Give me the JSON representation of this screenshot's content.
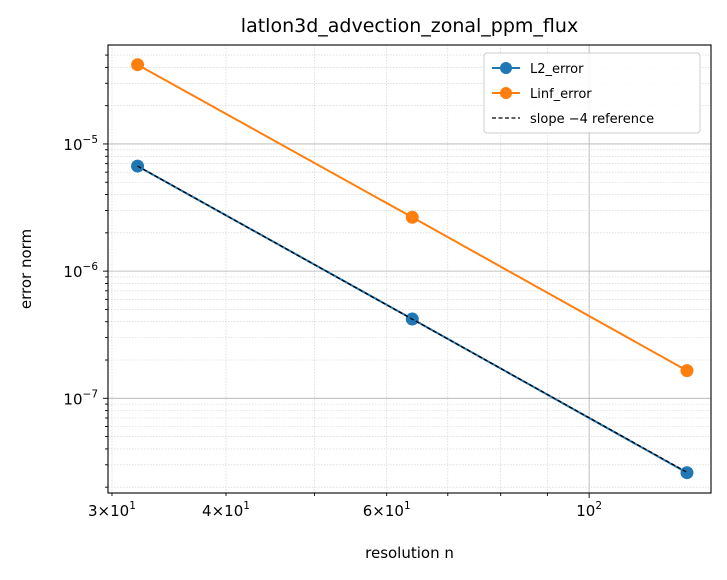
{
  "chart_data": {
    "type": "line",
    "title": "latlon3d_advection_zonal_ppm_flux",
    "xlabel": "resolution n",
    "ylabel": "error norm",
    "xscale": "log",
    "yscale": "log",
    "xlim": [
      29.7,
      136
    ],
    "ylim": [
      1.8e-08,
      6e-05
    ],
    "x_ticks": [
      {
        "value": 30,
        "base": "3",
        "exp": "10",
        "pow": "1"
      },
      {
        "value": 40,
        "base": "4",
        "exp": "10",
        "pow": "1"
      },
      {
        "value": 60,
        "base": "6",
        "exp": "10",
        "pow": "1"
      },
      {
        "value": 100,
        "base": "",
        "exp": "10",
        "pow": "2"
      }
    ],
    "y_ticks": [
      {
        "value": 1e-05,
        "base": "10",
        "pow": "−5"
      },
      {
        "value": 1e-06,
        "base": "10",
        "pow": "−6"
      },
      {
        "value": 1e-07,
        "base": "10",
        "pow": "−7"
      }
    ],
    "grid": true,
    "legend_position": "top-right",
    "series": [
      {
        "name": "L2_error",
        "color": "#1f77b4",
        "style": "solid",
        "marker": "circle",
        "x": [
          32,
          64,
          128
        ],
        "y": [
          6.7e-06,
          4.2e-07,
          2.6e-08
        ]
      },
      {
        "name": "Linf_error",
        "color": "#ff7f0e",
        "style": "solid",
        "marker": "circle",
        "x": [
          32,
          64,
          128
        ],
        "y": [
          4.2e-05,
          2.65e-06,
          1.65e-07
        ]
      },
      {
        "name": "slope −4 reference",
        "color": "#000000",
        "style": "dashed",
        "marker": "none",
        "x": [
          32,
          64,
          128
        ],
        "y": [
          6.7e-06,
          4.19e-07,
          2.62e-08
        ]
      }
    ]
  }
}
